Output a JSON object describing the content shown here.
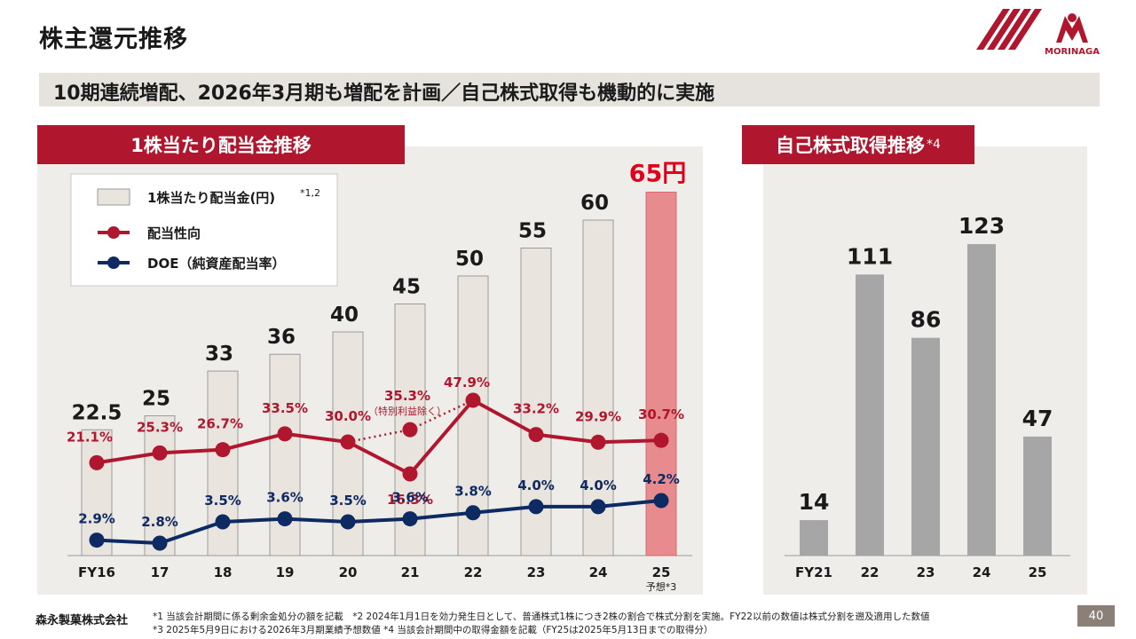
{
  "header": {
    "title": "株主還元推移",
    "subtitle": "10期連続増配、2026年3月期も増配を計画／自己株式取得も機動的に実施",
    "logo_text": "MORINAGA"
  },
  "colors": {
    "brand_red": "#b0162e",
    "payout_line": "#b0162e",
    "doe_line": "#0d2a63",
    "bar_fill": "#e9e4de",
    "forecast_bar": "#e88b8f",
    "buyback_bar": "#a6a6a6",
    "panel_bg": "#efedea"
  },
  "left_section": {
    "title": "1株当たり配当金推移"
  },
  "right_section": {
    "title": "自己株式取得推移",
    "title_note": "*4"
  },
  "legend": {
    "dividend_label": "1株当たり配当金(円)",
    "dividend_note": "*1,2",
    "payout_label": "配当性向",
    "doe_label": "DOE（純資産配当率）"
  },
  "chart_data": [
    {
      "type": "bar+line",
      "title": "1株当たり配当金推移",
      "categories": [
        "FY16",
        "17",
        "18",
        "19",
        "20",
        "21",
        "22",
        "23",
        "24",
        "25"
      ],
      "forecast_note": "予想*3",
      "forecast_index": 9,
      "series": [
        {
          "name": "1株当たり配当金(円)",
          "kind": "bar",
          "values": [
            22.5,
            25,
            33,
            36,
            40,
            45,
            50,
            55,
            60,
            65
          ],
          "labels": [
            "22.5",
            "25",
            "33",
            "36",
            "40",
            "45",
            "50",
            "55",
            "60",
            "65円"
          ]
        },
        {
          "name": "配当性向",
          "kind": "line",
          "unit": "%",
          "values": [
            21.1,
            25.3,
            26.7,
            33.5,
            30.0,
            16.3,
            47.9,
            33.2,
            29.9,
            30.7
          ],
          "labels": [
            "21.1%",
            "25.3%",
            "26.7%",
            "33.5%",
            "30.0%",
            "16.3%",
            "47.9%",
            "33.2%",
            "29.9%",
            "30.7%"
          ]
        },
        {
          "name": "DOE（純資産配当率）",
          "kind": "line",
          "unit": "%",
          "values": [
            2.9,
            2.8,
            3.5,
            3.6,
            3.5,
            3.6,
            3.8,
            4.0,
            4.0,
            4.2
          ],
          "labels": [
            "2.9%",
            "2.8%",
            "3.5%",
            "3.6%",
            "3.5%",
            "3.6%",
            "3.8%",
            "4.0%",
            "4.0%",
            "4.2%"
          ]
        }
      ],
      "annotation": {
        "category": "21",
        "value": 35.3,
        "label": "35.3%",
        "note": "（特別利益除く）"
      }
    },
    {
      "type": "bar",
      "title": "自己株式取得推移",
      "categories": [
        "FY21",
        "22",
        "23",
        "24",
        "25"
      ],
      "values": [
        14,
        111,
        86,
        123,
        47
      ],
      "labels": [
        "14",
        "111",
        "86",
        "123",
        "47"
      ]
    }
  ],
  "footer": {
    "company": "森永製菓株式会社",
    "note_line1": "*1  当該会計期間に係る剰余金処分の額を記載　*2  2024年1月1日を効力発生日として、普通株式1株につき2株の割合で株式分割を実施。FY22以前の数値は株式分割を遡及適用した数値",
    "note_line2": "*3  2025年5月9日における2026年3月期業績予想数値  *4  当該会計期間中の取得金額を記載（FY25は2025年5月13日までの取得分）",
    "page_number": "40"
  }
}
